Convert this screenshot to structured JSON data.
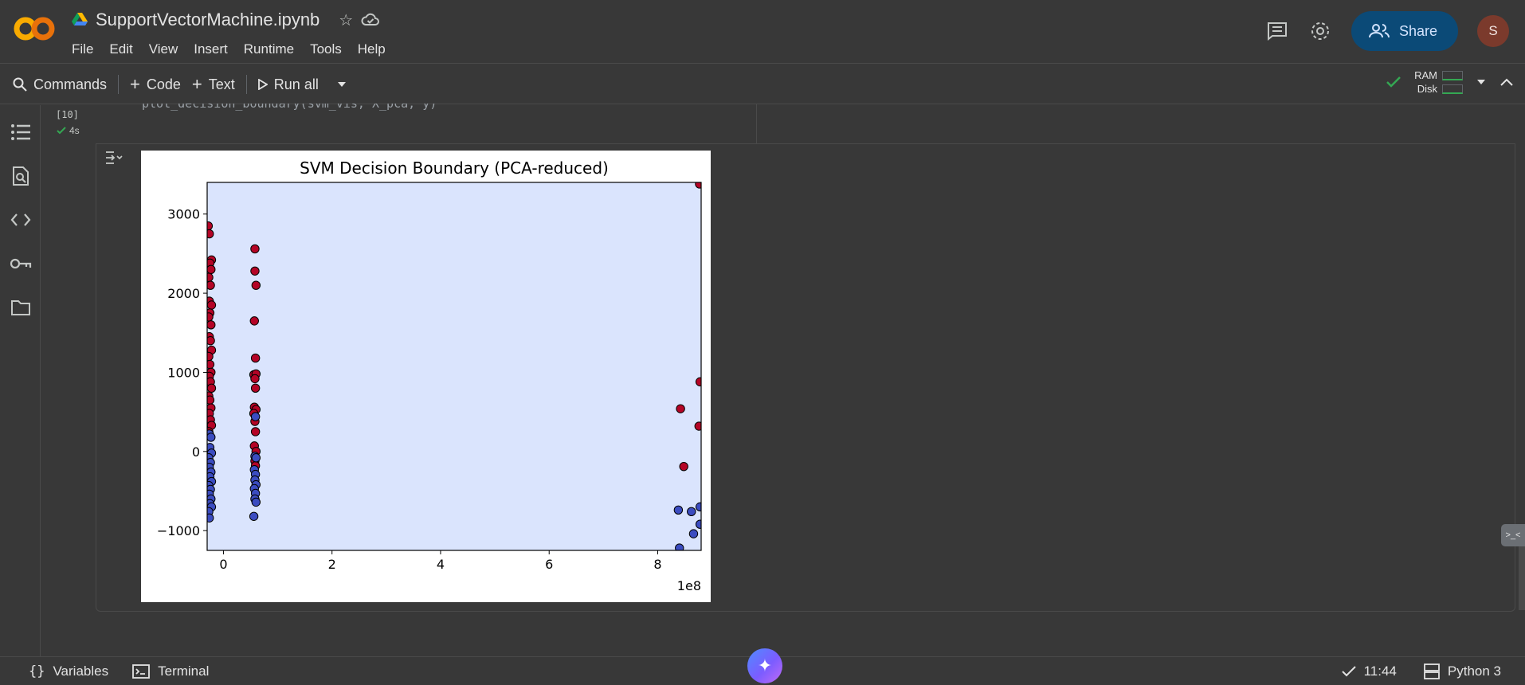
{
  "header": {
    "notebook_title": "SupportVectorMachine.ipynb",
    "menu": [
      "File",
      "Edit",
      "View",
      "Insert",
      "Runtime",
      "Tools",
      "Help"
    ],
    "share_label": "Share",
    "avatar_initial": "S"
  },
  "toolbar": {
    "commands_label": "Commands",
    "code_label": "Code",
    "text_label": "Text",
    "run_all_label": "Run all",
    "ram_label": "RAM",
    "disk_label": "Disk"
  },
  "cell": {
    "exec_count": "[10]",
    "exec_time": "4s",
    "code": "plot_decision_boundary(svm_vis, X_pca, y)"
  },
  "statusbar": {
    "variables_label": "Variables",
    "terminal_label": "Terminal",
    "time": "11:44",
    "runtime": "Python 3"
  },
  "chart_data": {
    "type": "scatter",
    "title": "SVM Decision Boundary (PCA-reduced)",
    "xlabel": "",
    "ylabel": "",
    "x_multiplier_label": "1e8",
    "xlim": [
      -0.3,
      8.8
    ],
    "ylim": [
      -1250,
      3400
    ],
    "x_ticks": [
      0,
      2,
      4,
      6,
      8
    ],
    "x_tick_labels": [
      "0",
      "2",
      "4",
      "6",
      "8"
    ],
    "y_ticks": [
      -1000,
      0,
      1000,
      2000,
      3000
    ],
    "y_tick_labels": [
      "−1000",
      "0",
      "1000",
      "2000",
      "3000"
    ],
    "background_region_color": "#dae4fd",
    "series": [
      {
        "color": "#b40426",
        "points": [
          [
            -0.28,
            2850
          ],
          [
            -0.26,
            2750
          ],
          [
            -0.22,
            2420
          ],
          [
            -0.25,
            2380
          ],
          [
            -0.23,
            2300
          ],
          [
            -0.27,
            2200
          ],
          [
            -0.24,
            2100
          ],
          [
            -0.26,
            1900
          ],
          [
            -0.22,
            1850
          ],
          [
            -0.25,
            1750
          ],
          [
            -0.27,
            1700
          ],
          [
            -0.23,
            1600
          ],
          [
            -0.26,
            1450
          ],
          [
            -0.24,
            1400
          ],
          [
            -0.22,
            1280
          ],
          [
            -0.27,
            1200
          ],
          [
            -0.25,
            1100
          ],
          [
            -0.23,
            1000
          ],
          [
            -0.26,
            950
          ],
          [
            -0.24,
            880
          ],
          [
            -0.22,
            800
          ],
          [
            -0.27,
            700
          ],
          [
            -0.25,
            650
          ],
          [
            -0.23,
            550
          ],
          [
            -0.26,
            480
          ],
          [
            -0.24,
            400
          ],
          [
            -0.22,
            330
          ],
          [
            -0.27,
            250
          ],
          [
            0.58,
            2560
          ],
          [
            0.58,
            2280
          ],
          [
            0.6,
            2100
          ],
          [
            0.57,
            1650
          ],
          [
            0.59,
            1180
          ],
          [
            0.56,
            970
          ],
          [
            0.6,
            980
          ],
          [
            0.58,
            920
          ],
          [
            0.59,
            800
          ],
          [
            0.57,
            560
          ],
          [
            0.6,
            530
          ],
          [
            0.56,
            480
          ],
          [
            0.58,
            380
          ],
          [
            0.59,
            250
          ],
          [
            0.57,
            70
          ],
          [
            0.6,
            0
          ],
          [
            0.58,
            -120
          ],
          [
            0.59,
            -180
          ],
          [
            8.42,
            540
          ],
          [
            8.48,
            -190
          ],
          [
            8.78,
            880
          ],
          [
            8.76,
            320
          ],
          [
            8.77,
            3380
          ]
        ]
      },
      {
        "color": "#3b4cc0",
        "points": [
          [
            -0.26,
            220
          ],
          [
            -0.23,
            180
          ],
          [
            -0.25,
            50
          ],
          [
            -0.22,
            -20
          ],
          [
            -0.27,
            -80
          ],
          [
            -0.24,
            -140
          ],
          [
            -0.26,
            -200
          ],
          [
            -0.23,
            -260
          ],
          [
            -0.25,
            -320
          ],
          [
            -0.22,
            -380
          ],
          [
            -0.27,
            -430
          ],
          [
            -0.24,
            -480
          ],
          [
            -0.26,
            -540
          ],
          [
            -0.23,
            -600
          ],
          [
            -0.25,
            -660
          ],
          [
            -0.22,
            -700
          ],
          [
            -0.27,
            -760
          ],
          [
            -0.26,
            -840
          ],
          [
            0.59,
            440
          ],
          [
            0.58,
            -60
          ],
          [
            0.6,
            -80
          ],
          [
            0.57,
            -230
          ],
          [
            0.59,
            -290
          ],
          [
            0.58,
            -360
          ],
          [
            0.6,
            -420
          ],
          [
            0.57,
            -470
          ],
          [
            0.59,
            -530
          ],
          [
            0.58,
            -600
          ],
          [
            0.6,
            -640
          ],
          [
            0.56,
            -820
          ],
          [
            8.38,
            -740
          ],
          [
            8.62,
            -760
          ],
          [
            8.66,
            -1040
          ],
          [
            8.78,
            -700
          ],
          [
            8.78,
            -920
          ],
          [
            8.4,
            -1220
          ]
        ]
      }
    ]
  }
}
